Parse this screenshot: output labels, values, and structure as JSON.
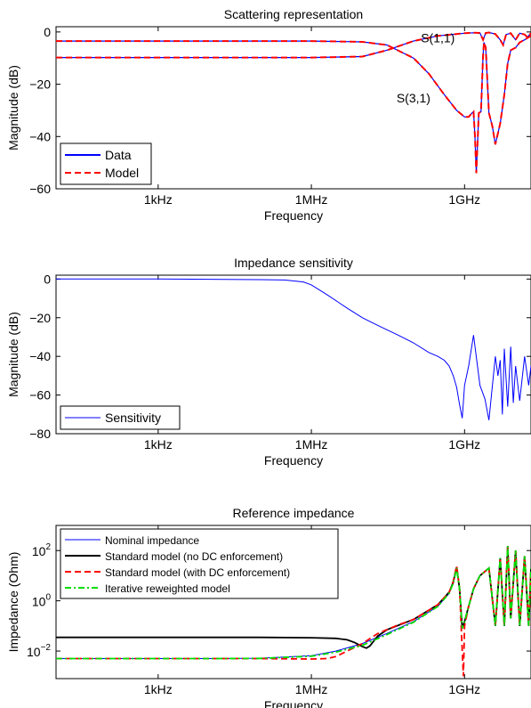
{
  "chart_data": [
    {
      "type": "line",
      "title": "Scattering representation",
      "xlabel": "Frequency",
      "ylabel": "Magnitude (dB)",
      "xscale": "log",
      "xlim": [
        10,
        20000000000
      ],
      "ylim": [
        -60,
        2
      ],
      "xticks": [
        {
          "value": 1000,
          "label": "1kHz"
        },
        {
          "value": 1000000,
          "label": "1MHz"
        },
        {
          "value": 1000000000,
          "label": "1GHz"
        }
      ],
      "yticks": [
        {
          "value": 0,
          "label": "0"
        },
        {
          "value": -20,
          "label": "−20"
        },
        {
          "value": -40,
          "label": "−40"
        },
        {
          "value": -60,
          "label": "−60"
        }
      ],
      "legend": {
        "position": "bottom-left",
        "entries": [
          {
            "label": "Data",
            "color": "#0000ff",
            "dash": "solid"
          },
          {
            "label": "Model",
            "color": "#ff0000",
            "dash": "dashed"
          }
        ]
      },
      "annotations": [
        {
          "text": "S(1,1)",
          "x": 300000000,
          "y": -4
        },
        {
          "text": "S(3,1)",
          "x": 100000000,
          "y": -27
        }
      ],
      "series": [
        {
          "name": "S(1,1)",
          "x": [
            10,
            1000,
            1000000,
            10000000,
            30000000,
            100000000,
            300000000,
            1000000000,
            1500000000,
            2000000000,
            2300000000,
            2600000000,
            3000000000,
            4000000000,
            5000000000,
            5700000000,
            6500000000,
            8000000000,
            10000000000,
            12000000000,
            15000000000,
            17000000000,
            20000000000
          ],
          "y": [
            -9.8,
            -9.8,
            -9.8,
            -9.4,
            -7,
            -3.5,
            -1.5,
            -0.5,
            -0.3,
            -0.4,
            -3,
            -0.4,
            -0.2,
            -0.8,
            -3,
            -5,
            -1,
            -0.5,
            -3,
            -0.5,
            -1,
            -2,
            -0.5
          ]
        },
        {
          "name": "S(3,1)",
          "x": [
            10,
            1000,
            1000000,
            10000000,
            30000000,
            100000000,
            200000000,
            400000000,
            700000000,
            1000000000,
            1200000000,
            1400000000,
            1500000000,
            1600000000,
            1700000000,
            1900000000,
            2100000000,
            2300000000,
            2400000000,
            2600000000,
            3000000000,
            3500000000,
            4000000000,
            5000000000,
            6000000000,
            7000000000,
            8000000000,
            10000000000,
            12000000000,
            15000000000,
            18000000000,
            20000000000
          ],
          "y": [
            -3.5,
            -3.5,
            -3.5,
            -3.8,
            -5,
            -10,
            -16,
            -24,
            -30,
            -32.5,
            -32.5,
            -31,
            -30.5,
            -40,
            -54,
            -31,
            -30.5,
            -9,
            -4,
            -6,
            -31,
            -36,
            -43,
            -35,
            -24,
            -12,
            -7,
            -6,
            -4,
            -3,
            -2,
            -1.5
          ]
        }
      ]
    },
    {
      "type": "line",
      "title": "Impedance sensitivity",
      "xlabel": "Frequency",
      "ylabel": "Magnitude (dB)",
      "xscale": "log",
      "xlim": [
        10,
        20000000000
      ],
      "ylim": [
        -80,
        2
      ],
      "xticks": [
        {
          "value": 1000,
          "label": "1kHz"
        },
        {
          "value": 1000000,
          "label": "1MHz"
        },
        {
          "value": 1000000000,
          "label": "1GHz"
        }
      ],
      "yticks": [
        {
          "value": 0,
          "label": "0"
        },
        {
          "value": -20,
          "label": "−20"
        },
        {
          "value": -40,
          "label": "−40"
        },
        {
          "value": -60,
          "label": "−60"
        },
        {
          "value": -80,
          "label": "−80"
        }
      ],
      "legend": {
        "position": "bottom-left",
        "entries": [
          {
            "label": "Sensitivity",
            "color": "#0000ff",
            "dash": "solid"
          }
        ]
      },
      "series": [
        {
          "name": "Sensitivity",
          "x": [
            10,
            1000,
            100000,
            300000,
            700000,
            1000000,
            2000000,
            5000000,
            10000000,
            20000000,
            50000000,
            100000000,
            200000000,
            300000000,
            400000000,
            500000000,
            600000000,
            700000000,
            800000000,
            900000000,
            1000000000,
            1200000000,
            1500000000,
            2000000000,
            2500000000,
            3000000000,
            4000000000,
            4500000000,
            5000000000,
            5500000000,
            6000000000,
            7000000000,
            8000000000,
            9000000000,
            10000000000,
            12000000000,
            15000000000,
            18000000000,
            20000000000
          ],
          "y": [
            0,
            0,
            -0.3,
            -0.5,
            -1.5,
            -3,
            -8,
            -15,
            -20,
            -24,
            -29,
            -33,
            -38,
            -40,
            -42,
            -45,
            -50,
            -56,
            -65,
            -72,
            -55,
            -45,
            -29,
            -55,
            -62,
            -73,
            -40,
            -50,
            -42,
            -70,
            -36,
            -66,
            -35,
            -64,
            -45,
            -63,
            -40,
            -55,
            -45
          ]
        }
      ]
    },
    {
      "type": "line",
      "title": "Reference impedance",
      "xlabel": "Frequency",
      "ylabel": "Impedance (Ohm)",
      "xscale": "log",
      "yscale": "log",
      "xlim": [
        10,
        20000000000
      ],
      "ylim": [
        0.0008,
        1000
      ],
      "xticks": [
        {
          "value": 1000,
          "label": "1kHz"
        },
        {
          "value": 1000000,
          "label": "1MHz"
        },
        {
          "value": 1000000000,
          "label": "1GHz"
        }
      ],
      "yticks": [
        {
          "value": 0.01,
          "base": "10",
          "exp": "−2"
        },
        {
          "value": 1,
          "base": "10",
          "exp": "0"
        },
        {
          "value": 100,
          "base": "10",
          "exp": "2"
        }
      ],
      "legend": {
        "position": "top-left",
        "entries": [
          {
            "label": "Nominal impedance",
            "color": "#0000ff",
            "dash": "solid"
          },
          {
            "label": "Standard model (no DC enforcement)",
            "color": "#000000",
            "dash": "solid"
          },
          {
            "label": "Standard model (with DC enforcement)",
            "color": "#ff0000",
            "dash": "dashed"
          },
          {
            "label": "Iterative reweighted model",
            "color": "#00dd00",
            "dash": "dashdot"
          }
        ]
      },
      "series": [
        {
          "name": "Nominal impedance",
          "x": [
            10,
            10000,
            100000,
            1000000,
            3000000,
            10000000,
            30000000,
            100000000,
            300000000,
            500000000,
            600000000,
            700000000,
            800000000,
            900000000,
            1000000000,
            1200000000,
            1500000000,
            2000000000,
            3000000000,
            4000000000,
            5000000000,
            6000000000,
            7000000000,
            8000000000,
            10000000000,
            12000000000,
            15000000000,
            18000000000,
            20000000000
          ],
          "y": [
            0.005,
            0.005,
            0.0052,
            0.0065,
            0.01,
            0.02,
            0.05,
            0.15,
            0.6,
            2,
            5,
            20,
            3,
            0.08,
            0.15,
            0.6,
            3,
            10,
            20,
            0.1,
            50,
            0.1,
            150,
            0.2,
            100,
            0.1,
            60,
            0.1,
            20
          ]
        },
        {
          "name": "Standard model (no DC enforcement)",
          "x": [
            10,
            100000,
            1000000,
            3000000,
            5000000,
            7000000,
            10000000,
            12000000,
            14000000,
            20000000,
            30000000,
            100000000,
            300000000,
            500000000,
            600000000,
            700000000,
            800000000,
            900000000,
            1000000000,
            1200000000,
            1500000000,
            2000000000,
            3000000000,
            4000000000,
            5000000000,
            6000000000,
            7000000000,
            8000000000,
            10000000000,
            12000000000,
            15000000000,
            18000000000,
            20000000000
          ],
          "y": [
            0.035,
            0.035,
            0.034,
            0.032,
            0.028,
            0.022,
            0.015,
            0.013,
            0.016,
            0.04,
            0.07,
            0.18,
            0.7,
            2.2,
            5.5,
            22,
            3,
            0.08,
            0.15,
            0.6,
            3,
            10,
            20,
            0.1,
            50,
            0.1,
            150,
            0.2,
            100,
            0.1,
            60,
            0.1,
            20
          ]
        },
        {
          "name": "Standard model (with DC enforcement)",
          "x": [
            10,
            100000,
            1000000,
            2000000,
            3000000,
            5000000,
            10000000,
            20000000,
            50000000,
            100000000,
            300000000,
            500000000,
            600000000,
            700000000,
            800000000,
            900000000,
            950000000,
            1000000000,
            1200000000,
            1500000000,
            2000000000,
            3000000000,
            4000000000,
            5000000000,
            6000000000,
            7000000000,
            8000000000,
            10000000000,
            12000000000,
            15000000000,
            18000000000,
            20000000000
          ],
          "y": [
            0.005,
            0.005,
            0.0048,
            0.005,
            0.006,
            0.01,
            0.02,
            0.05,
            0.11,
            0.18,
            0.7,
            2.2,
            6,
            25,
            3,
            0.01,
            0.001,
            0.1,
            0.6,
            3,
            10,
            20,
            0.1,
            50,
            0.1,
            150,
            0.2,
            100,
            0.1,
            60,
            0.1,
            20
          ]
        },
        {
          "name": "Iterative reweighted model",
          "x": [
            10,
            10000,
            100000,
            1000000,
            3000000,
            10000000,
            30000000,
            100000000,
            300000000,
            500000000,
            600000000,
            700000000,
            800000000,
            900000000,
            1000000000,
            1200000000,
            1500000000,
            2000000000,
            3000000000,
            4000000000,
            5000000000,
            6000000000,
            7000000000,
            8000000000,
            10000000000,
            12000000000,
            15000000000,
            18000000000,
            20000000000
          ],
          "y": [
            0.005,
            0.005,
            0.0051,
            0.0062,
            0.009,
            0.017,
            0.045,
            0.14,
            0.6,
            2,
            5,
            20,
            3,
            0.08,
            0.15,
            0.6,
            3,
            10,
            20,
            0.1,
            50,
            0.1,
            150,
            0.2,
            100,
            0.1,
            60,
            0.1,
            20
          ]
        }
      ]
    }
  ]
}
